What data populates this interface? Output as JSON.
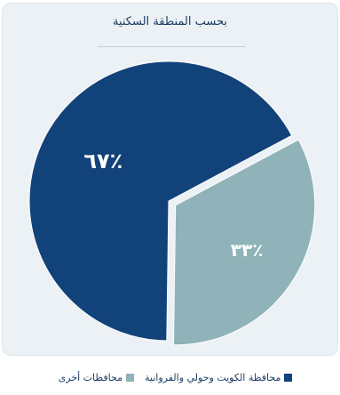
{
  "chart_data": {
    "type": "pie",
    "title": "بحسب المنطقة السكنية",
    "slices": [
      {
        "label": "محافظة الكويت وحولي والفروانية",
        "value": 67,
        "display": "٦٧٪",
        "color": "#12427a"
      },
      {
        "label": "محافظات أخرى",
        "value": 33,
        "display": "٣٣٪",
        "color": "#8fb3b9"
      }
    ],
    "legend_position": "bottom"
  }
}
